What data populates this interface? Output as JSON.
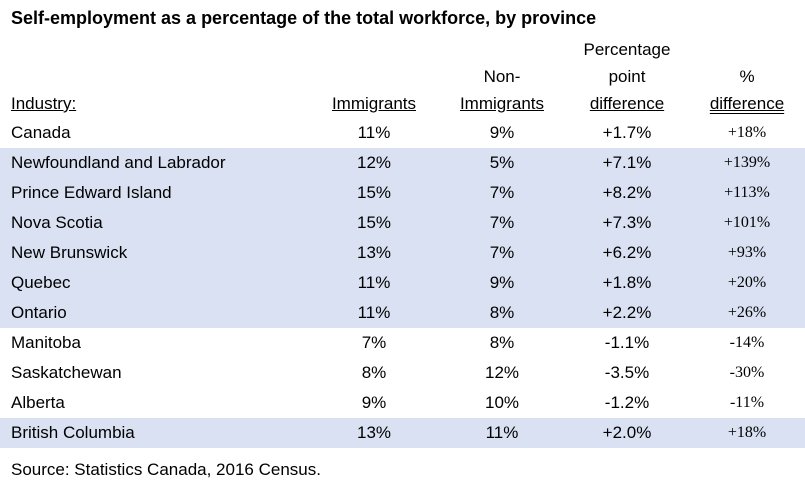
{
  "title": "Self-employment as a percentage of the total workforce, by province",
  "headers": {
    "industry": "Industry:",
    "immigrants": "Immigrants",
    "non_immigrants_line1": "Non-",
    "non_immigrants_line2": "Immigrants",
    "ppd_line1": "Percentage",
    "ppd_line2": "point",
    "ppd_line3": "difference",
    "pct_line1": "%",
    "pct_line2": "difference"
  },
  "rows": [
    {
      "name": "Canada",
      "immigrants": "11%",
      "non_immigrants": "9%",
      "ppd": "+1.7%",
      "pct": "+18%",
      "shaded": false
    },
    {
      "name": "Newfoundland and Labrador",
      "immigrants": "12%",
      "non_immigrants": "5%",
      "ppd": "+7.1%",
      "pct": "+139%",
      "shaded": true
    },
    {
      "name": "Prince Edward Island",
      "immigrants": "15%",
      "non_immigrants": "7%",
      "ppd": "+8.2%",
      "pct": "+113%",
      "shaded": true
    },
    {
      "name": "Nova Scotia",
      "immigrants": "15%",
      "non_immigrants": "7%",
      "ppd": "+7.3%",
      "pct": "+101%",
      "shaded": true
    },
    {
      "name": "New Brunswick",
      "immigrants": "13%",
      "non_immigrants": "7%",
      "ppd": "+6.2%",
      "pct": "+93%",
      "shaded": true
    },
    {
      "name": "Quebec",
      "immigrants": "11%",
      "non_immigrants": "9%",
      "ppd": "+1.8%",
      "pct": "+20%",
      "shaded": true
    },
    {
      "name": "Ontario",
      "immigrants": "11%",
      "non_immigrants": "8%",
      "ppd": "+2.2%",
      "pct": "+26%",
      "shaded": true
    },
    {
      "name": "Manitoba",
      "immigrants": "7%",
      "non_immigrants": "8%",
      "ppd": "-1.1%",
      "pct": "-14%",
      "shaded": false
    },
    {
      "name": "Saskatchewan",
      "immigrants": "8%",
      "non_immigrants": "12%",
      "ppd": "-3.5%",
      "pct": "-30%",
      "shaded": false
    },
    {
      "name": "Alberta",
      "immigrants": "9%",
      "non_immigrants": "10%",
      "ppd": "-1.2%",
      "pct": "-11%",
      "shaded": false
    },
    {
      "name": "British Columbia",
      "immigrants": "13%",
      "non_immigrants": "11%",
      "ppd": "+2.0%",
      "pct": "+18%",
      "shaded": true
    }
  ],
  "source": "Source: Statistics Canada, 2016 Census.",
  "colors": {
    "shaded_row": "#d9e1f2",
    "text": "#000000",
    "background": "#ffffff"
  }
}
